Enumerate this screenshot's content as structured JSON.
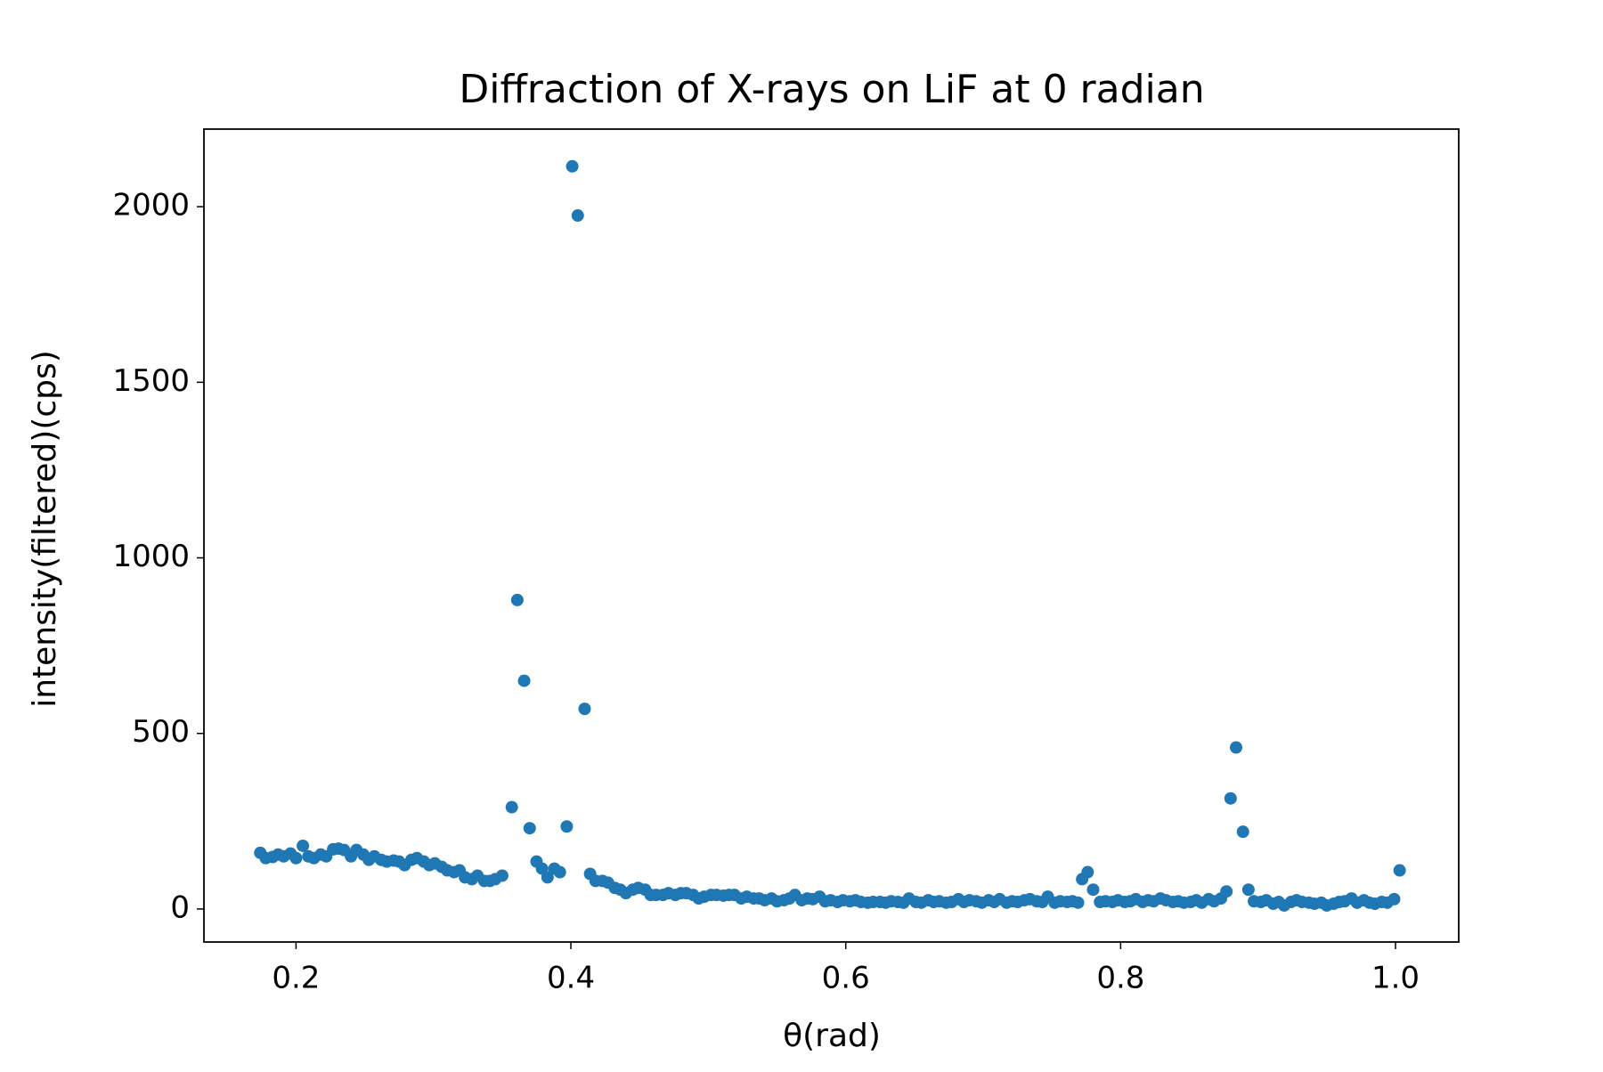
{
  "chart_data": {
    "type": "scatter",
    "title": "Diffraction of X-rays on LiF at 0 radian",
    "x_label": "θ(rad)",
    "y_label": "intensity(filtered)(cps)",
    "color": "#1f77b4",
    "xlim": [
      0.133,
      1.046
    ],
    "ylim": [
      -94,
      2221
    ],
    "xticks": [
      0.2,
      0.4,
      0.6,
      0.8,
      {
        "value": 1.0,
        "label": "1.0"
      }
    ],
    "yticks": [
      0,
      500,
      1000,
      1500,
      2000
    ],
    "x": [
      0.174,
      0.178,
      0.183,
      0.187,
      0.191,
      0.196,
      0.2,
      0.205,
      0.209,
      0.213,
      0.218,
      0.222,
      0.227,
      0.231,
      0.235,
      0.24,
      0.244,
      0.249,
      0.253,
      0.257,
      0.262,
      0.266,
      0.271,
      0.275,
      0.279,
      0.284,
      0.288,
      0.293,
      0.297,
      0.301,
      0.306,
      0.31,
      0.315,
      0.319,
      0.323,
      0.328,
      0.332,
      0.337,
      0.341,
      0.345,
      0.35,
      0.357,
      0.361,
      0.366,
      0.37,
      0.375,
      0.379,
      0.383,
      0.388,
      0.392,
      0.397,
      0.401,
      0.405,
      0.41,
      0.414,
      0.418,
      0.423,
      0.427,
      0.432,
      0.436,
      0.44,
      0.445,
      0.449,
      0.454,
      0.458,
      0.462,
      0.467,
      0.471,
      0.476,
      0.48,
      0.484,
      0.489,
      0.493,
      0.497,
      0.502,
      0.506,
      0.511,
      0.515,
      0.519,
      0.524,
      0.528,
      0.533,
      0.537,
      0.541,
      0.546,
      0.55,
      0.555,
      0.559,
      0.563,
      0.568,
      0.572,
      0.576,
      0.581,
      0.585,
      0.589,
      0.594,
      0.598,
      0.603,
      0.607,
      0.611,
      0.616,
      0.62,
      0.625,
      0.629,
      0.633,
      0.638,
      0.642,
      0.646,
      0.651,
      0.655,
      0.66,
      0.664,
      0.668,
      0.673,
      0.677,
      0.682,
      0.686,
      0.69,
      0.695,
      0.699,
      0.704,
      0.708,
      0.712,
      0.717,
      0.721,
      0.725,
      0.73,
      0.734,
      0.739,
      0.743,
      0.747,
      0.752,
      0.756,
      0.761,
      0.765,
      0.769,
      0.772,
      0.776,
      0.78,
      0.785,
      0.789,
      0.794,
      0.798,
      0.803,
      0.807,
      0.811,
      0.816,
      0.82,
      0.824,
      0.829,
      0.833,
      0.838,
      0.842,
      0.846,
      0.851,
      0.855,
      0.859,
      0.864,
      0.868,
      0.873,
      0.877,
      0.88,
      0.884,
      0.889,
      0.893,
      0.897,
      0.902,
      0.906,
      0.911,
      0.915,
      0.919,
      0.924,
      0.928,
      0.932,
      0.937,
      0.941,
      0.946,
      0.95,
      0.955,
      0.959,
      0.963,
      0.968,
      0.972,
      0.977,
      0.981,
      0.985,
      0.99,
      0.994,
      0.999,
      1.003
    ],
    "values": [
      160,
      145,
      148,
      155,
      150,
      158,
      145,
      180,
      150,
      145,
      155,
      150,
      170,
      172,
      168,
      150,
      168,
      155,
      140,
      150,
      140,
      135,
      138,
      135,
      125,
      140,
      145,
      135,
      125,
      130,
      120,
      110,
      105,
      110,
      90,
      85,
      95,
      80,
      80,
      85,
      95,
      290,
      880,
      650,
      230,
      135,
      115,
      90,
      115,
      105,
      235,
      2115,
      1975,
      570,
      100,
      80,
      80,
      75,
      60,
      55,
      45,
      55,
      60,
      55,
      40,
      40,
      40,
      45,
      40,
      45,
      45,
      40,
      30,
      35,
      40,
      40,
      38,
      40,
      40,
      30,
      35,
      30,
      30,
      25,
      30,
      22,
      25,
      30,
      40,
      25,
      30,
      28,
      35,
      22,
      25,
      20,
      25,
      22,
      25,
      20,
      18,
      20,
      20,
      18,
      22,
      20,
      18,
      30,
      20,
      18,
      25,
      20,
      22,
      18,
      20,
      28,
      20,
      25,
      22,
      18,
      25,
      20,
      28,
      18,
      22,
      20,
      25,
      28,
      22,
      20,
      35,
      18,
      22,
      20,
      22,
      18,
      85,
      105,
      55,
      20,
      22,
      20,
      25,
      20,
      22,
      28,
      20,
      25,
      22,
      30,
      25,
      20,
      22,
      18,
      20,
      25,
      18,
      28,
      22,
      30,
      50,
      315,
      460,
      220,
      55,
      22,
      20,
      25,
      15,
      20,
      10,
      20,
      25,
      20,
      18,
      15,
      18,
      10,
      15,
      20,
      22,
      30,
      18,
      25,
      18,
      15,
      20,
      18,
      28,
      110
    ]
  }
}
